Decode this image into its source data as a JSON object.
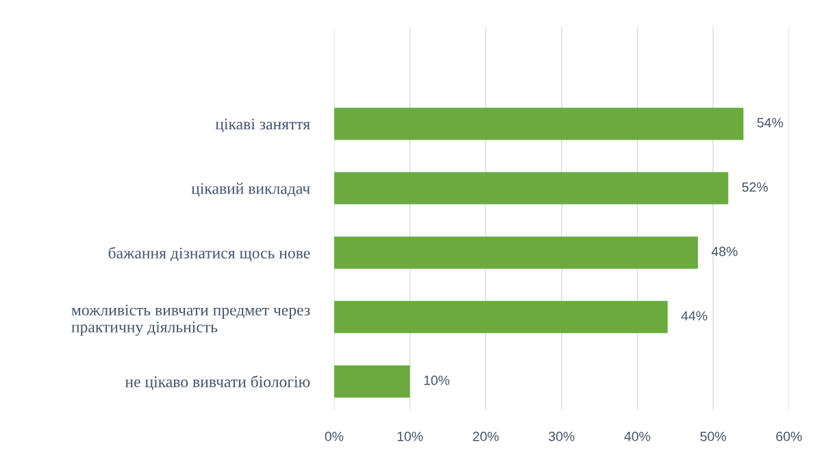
{
  "chart_data": {
    "type": "bar",
    "orientation": "horizontal",
    "categories": [
      "цікаві заняття",
      "цікавий викладач",
      "бажання дізнатися щось нове",
      "можливість вивчати предмет через\nпрактичну діяльність",
      "не цікаво вивчати біологію"
    ],
    "values": [
      54,
      52,
      48,
      44,
      10
    ],
    "value_labels": [
      "54%",
      "52%",
      "48%",
      "44%",
      "10%"
    ],
    "color": "#6aaa3e",
    "xlim": [
      0,
      60
    ],
    "xticks": [
      {
        "value": 0,
        "label": "0%"
      },
      {
        "value": 10,
        "label": "10%"
      },
      {
        "value": 20,
        "label": "20%"
      },
      {
        "value": 30,
        "label": "30%"
      },
      {
        "value": 40,
        "label": "40%"
      },
      {
        "value": 50,
        "label": "50%"
      },
      {
        "value": 60,
        "label": "60%"
      }
    ],
    "grid": "x",
    "legend": false
  }
}
